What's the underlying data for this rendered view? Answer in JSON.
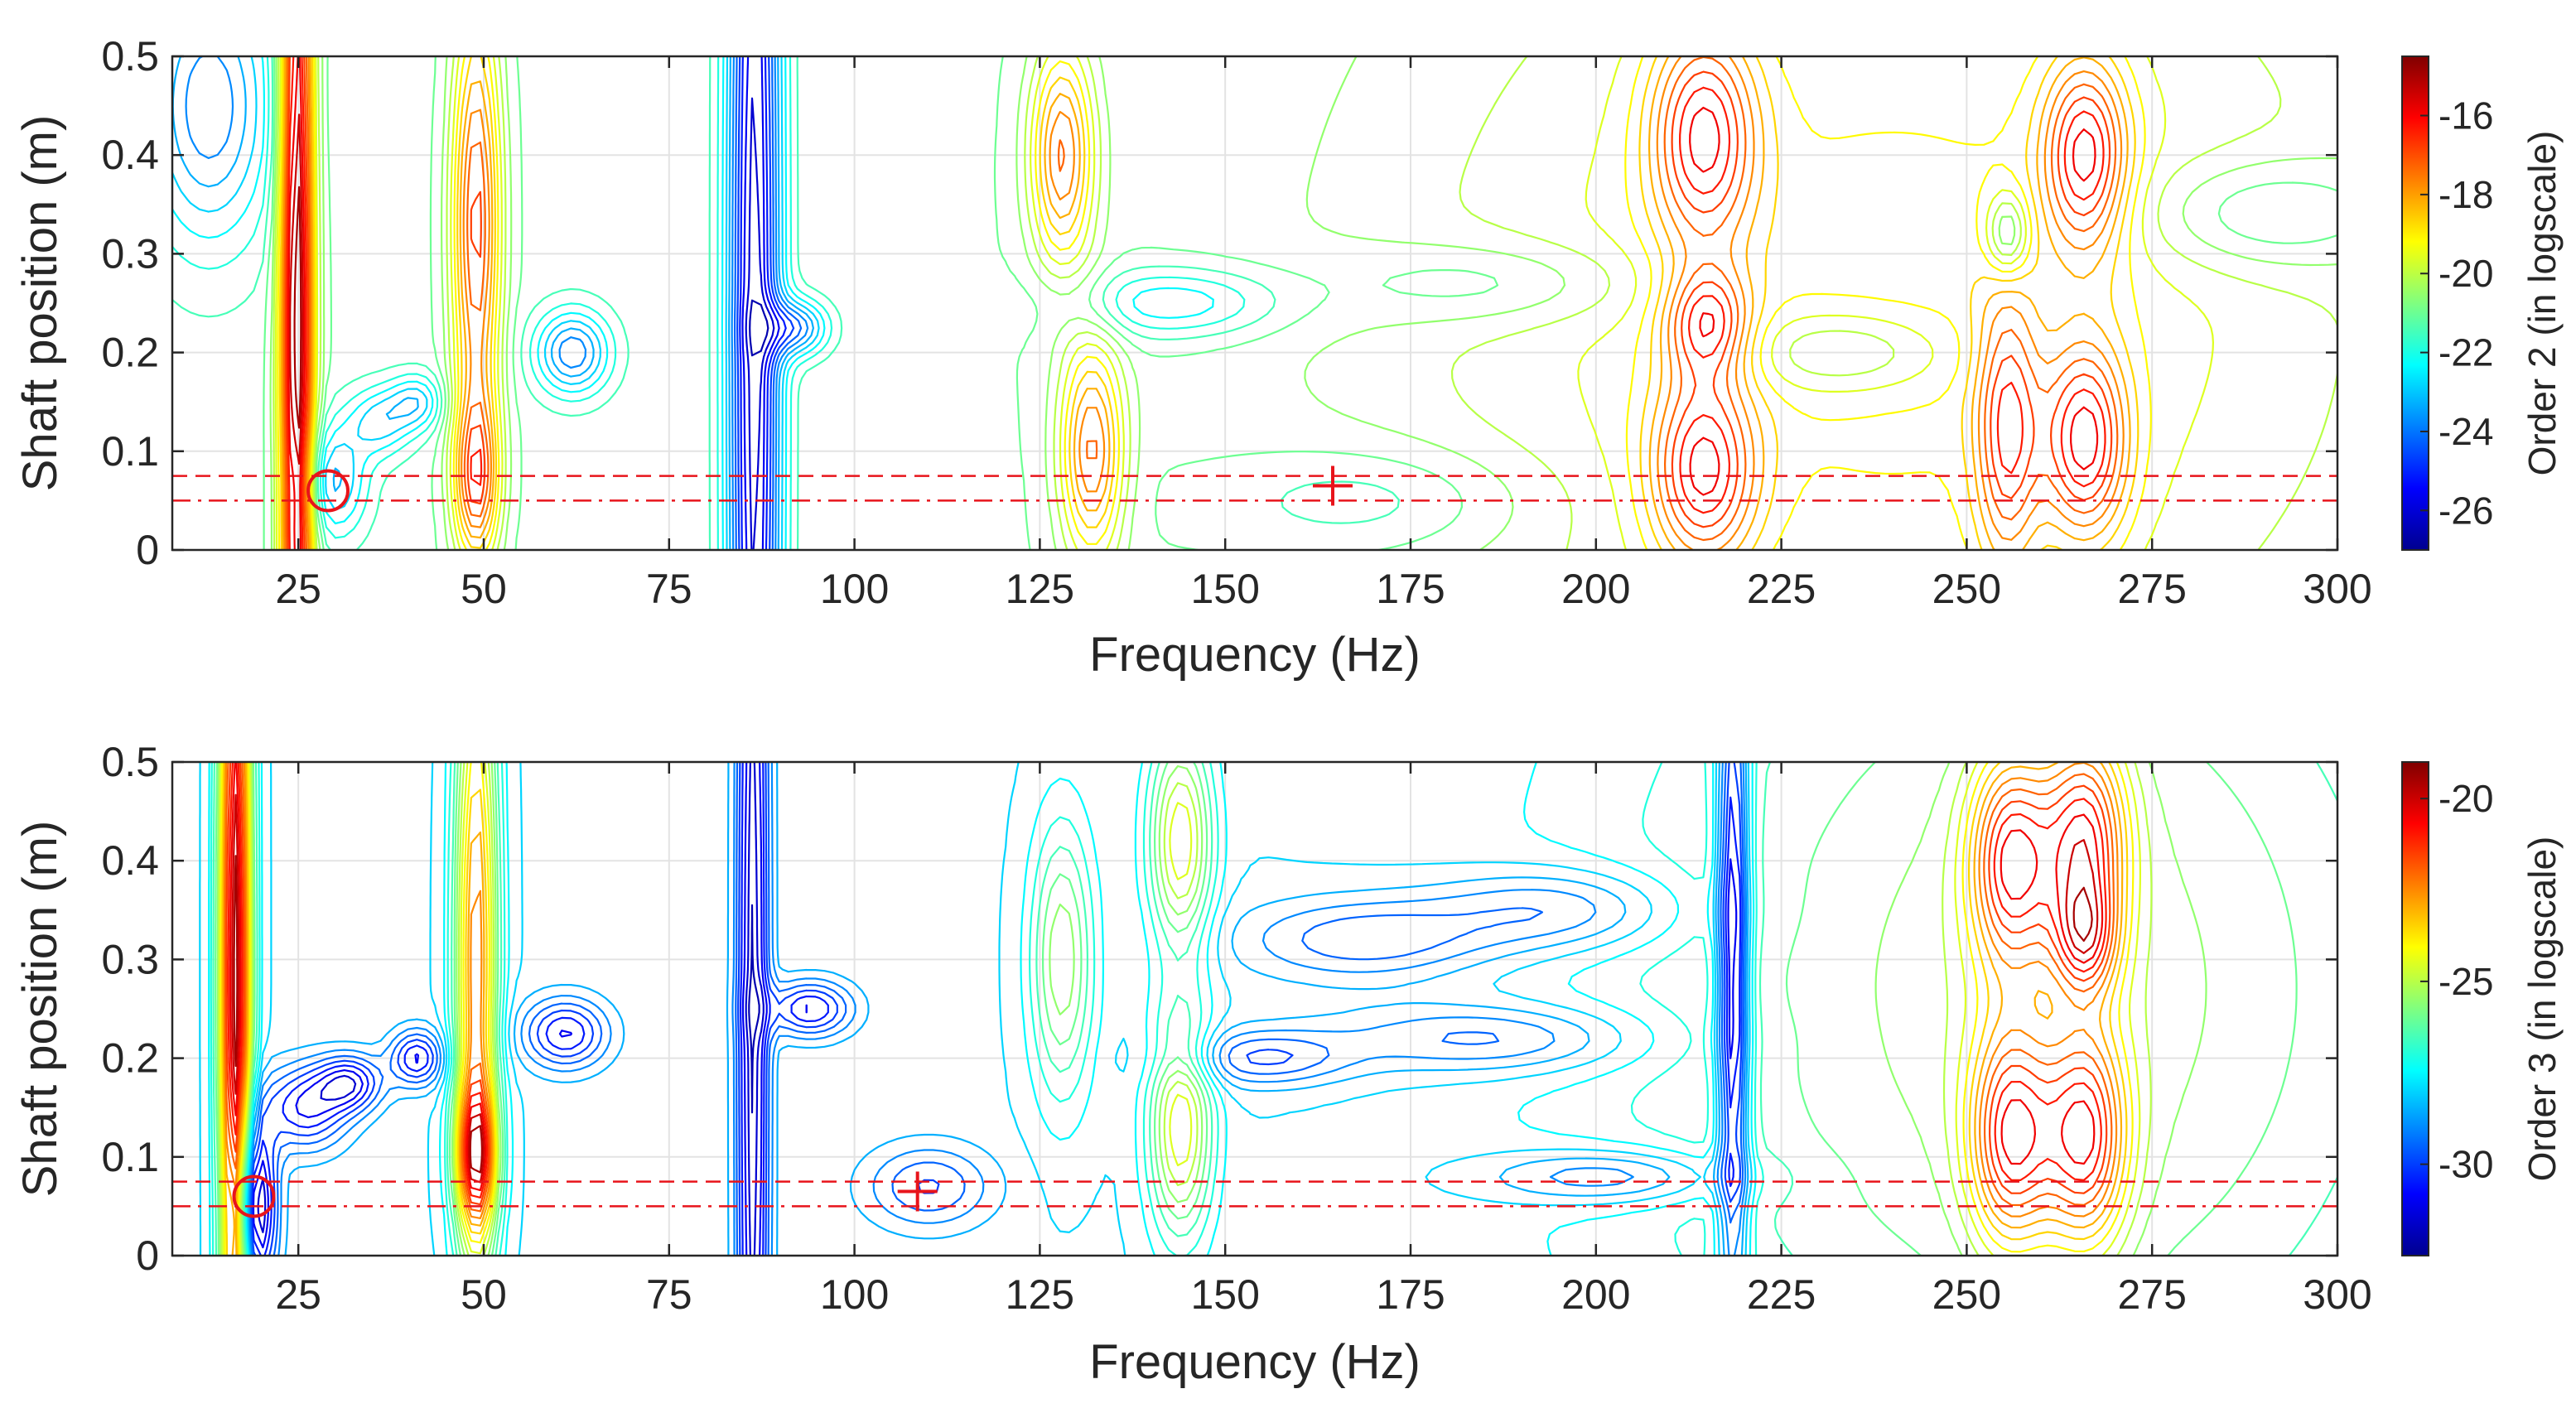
{
  "chart_data": [
    {
      "type": "contour",
      "xlabel": "Frequency (Hz)",
      "ylabel": "Shaft position (m)",
      "xlim": [
        8,
        300
      ],
      "ylim": [
        0,
        0.5
      ],
      "xticks": [
        25,
        50,
        75,
        100,
        125,
        150,
        175,
        200,
        225,
        250,
        275,
        300
      ],
      "yticks": [
        0,
        0.1,
        0.2,
        0.3,
        0.4,
        0.5
      ],
      "grid": true,
      "colorbar": {
        "label": "Order 2 (in logscale)",
        "range": [
          -27,
          -14.5
        ],
        "ticks": [
          -26,
          -24,
          -22,
          -20,
          -18,
          -16
        ],
        "colormap": "jet"
      },
      "reference_lines": [
        {
          "style": "dashed",
          "y": 0.075,
          "color": "#e8141b"
        },
        {
          "style": "dash-dot",
          "y": 0.05,
          "color": "#e8141b"
        }
      ],
      "markers": [
        {
          "symbol": "circle",
          "x": 29,
          "y": 0.06,
          "color": "#e8141b"
        },
        {
          "symbol": "plus",
          "x": 164.5,
          "y": 0.065,
          "color": "#e8141b"
        }
      ],
      "features": [
        {
          "x": 24.8,
          "y": 0.25,
          "sx": 1.6,
          "sy": 0.45,
          "amp": 9
        },
        {
          "x": 49,
          "y": 0.33,
          "sx": 2.3,
          "sy": 0.16,
          "amp": 6
        },
        {
          "x": 49,
          "y": 0.07,
          "sx": 2.2,
          "sy": 0.06,
          "amp": 5
        },
        {
          "x": 86.5,
          "y": 0.22,
          "sx": 2.5,
          "sy": 0.7,
          "amp": -7
        },
        {
          "x": 92,
          "y": 0.225,
          "sx": 3,
          "sy": 0.02,
          "amp": -4
        },
        {
          "x": 62,
          "y": 0.2,
          "sx": 3.5,
          "sy": 0.03,
          "amp": -4
        },
        {
          "x": 13,
          "y": 0.45,
          "sx": 6,
          "sy": 0.1,
          "amp": -4
        },
        {
          "x": 30,
          "y": 0.07,
          "sx": 3,
          "sy": 0.04,
          "amp": -3
        },
        {
          "x": 36,
          "y": 0.13,
          "sx": 3,
          "sy": 0.025,
          "amp": -2.5
        },
        {
          "x": 41,
          "y": 0.15,
          "sx": 2.5,
          "sy": 0.02,
          "amp": -2.5
        },
        {
          "x": 128,
          "y": 0.4,
          "sx": 3,
          "sy": 0.08,
          "amp": 5
        },
        {
          "x": 132,
          "y": 0.1,
          "sx": 3,
          "sy": 0.08,
          "amp": 5
        },
        {
          "x": 143,
          "y": 0.25,
          "sx": 10,
          "sy": 0.025,
          "amp": -2.5
        },
        {
          "x": 186,
          "y": 0.27,
          "sx": 15,
          "sy": 0.03,
          "amp": -1.5
        },
        {
          "x": 214.5,
          "y": 0.42,
          "sx": 5,
          "sy": 0.08,
          "amp": 5
        },
        {
          "x": 214.5,
          "y": 0.08,
          "sx": 5,
          "sy": 0.07,
          "amp": 5
        },
        {
          "x": 215,
          "y": 0.23,
          "sx": 4,
          "sy": 0.04,
          "amp": 4
        },
        {
          "x": 233,
          "y": 0.2,
          "sx": 10,
          "sy": 0.03,
          "amp": -2
        },
        {
          "x": 255.5,
          "y": 0.12,
          "sx": 3,
          "sy": 0.1,
          "amp": 4
        },
        {
          "x": 266,
          "y": 0.4,
          "sx": 4,
          "sy": 0.07,
          "amp": 5
        },
        {
          "x": 266,
          "y": 0.11,
          "sx": 4,
          "sy": 0.07,
          "amp": 5
        },
        {
          "x": 255.5,
          "y": 0.32,
          "sx": 2,
          "sy": 0.03,
          "amp": -3
        },
        {
          "x": 290,
          "y": 0.34,
          "sx": 12,
          "sy": 0.04,
          "amp": -2
        },
        {
          "x": 170,
          "y": 0.05,
          "sx": 15,
          "sy": 0.04,
          "amp": -1.5
        },
        {
          "x": 240,
          "y": 0.25,
          "sx": 50,
          "sy": 0.35,
          "amp": 3
        }
      ]
    },
    {
      "type": "contour",
      "xlabel": "Frequency (Hz)",
      "ylabel": "Shaft position (m)",
      "xlim": [
        8,
        300
      ],
      "ylim": [
        0,
        0.5
      ],
      "xticks": [
        25,
        50,
        75,
        100,
        125,
        150,
        175,
        200,
        225,
        250,
        275,
        300
      ],
      "yticks": [
        0,
        0.1,
        0.2,
        0.3,
        0.4,
        0.5
      ],
      "grid": true,
      "colorbar": {
        "label": "Order 3 (in logscale)",
        "range": [
          -32.5,
          -19
        ],
        "ticks": [
          -30,
          -25,
          -20
        ],
        "colormap": "jet"
      },
      "reference_lines": [
        {
          "style": "dashed",
          "y": 0.075,
          "color": "#e8141b"
        },
        {
          "style": "dash-dot",
          "y": 0.05,
          "color": "#e8141b"
        }
      ],
      "markers": [
        {
          "symbol": "circle",
          "x": 19,
          "y": 0.06,
          "color": "#e8141b"
        },
        {
          "symbol": "plus",
          "x": 108.5,
          "y": 0.065,
          "color": "#e8141b"
        }
      ],
      "features": [
        {
          "x": 16.5,
          "y": 0.28,
          "sx": 1.5,
          "sy": 0.4,
          "amp": 9
        },
        {
          "x": 49,
          "y": 0.3,
          "sx": 2,
          "sy": 0.25,
          "amp": 6
        },
        {
          "x": 49,
          "y": 0.1,
          "sx": 2,
          "sy": 0.05,
          "amp": 5
        },
        {
          "x": 86.3,
          "y": 0.25,
          "sx": 1.5,
          "sy": 0.6,
          "amp": -4
        },
        {
          "x": 94,
          "y": 0.25,
          "sx": 4,
          "sy": 0.02,
          "amp": -3
        },
        {
          "x": 61,
          "y": 0.225,
          "sx": 4,
          "sy": 0.025,
          "amp": -3
        },
        {
          "x": 19,
          "y": 0.05,
          "sx": 2,
          "sy": 0.06,
          "amp": -5
        },
        {
          "x": 26,
          "y": 0.15,
          "sx": 4,
          "sy": 0.03,
          "amp": -3
        },
        {
          "x": 32,
          "y": 0.175,
          "sx": 3,
          "sy": 0.02,
          "amp": -3
        },
        {
          "x": 41,
          "y": 0.2,
          "sx": 2.5,
          "sy": 0.02,
          "amp": -3
        },
        {
          "x": 144,
          "y": 0.42,
          "sx": 3,
          "sy": 0.08,
          "amp": 4
        },
        {
          "x": 144,
          "y": 0.13,
          "sx": 3,
          "sy": 0.08,
          "amp": 4
        },
        {
          "x": 128,
          "y": 0.3,
          "sx": 3,
          "sy": 0.1,
          "amp": 3
        },
        {
          "x": 169,
          "y": 0.32,
          "sx": 12,
          "sy": 0.03,
          "amp": -2
        },
        {
          "x": 195,
          "y": 0.35,
          "sx": 12,
          "sy": 0.03,
          "amp": -2
        },
        {
          "x": 186,
          "y": 0.22,
          "sx": 15,
          "sy": 0.025,
          "amp": -2
        },
        {
          "x": 155,
          "y": 0.2,
          "sx": 8,
          "sy": 0.02,
          "amp": -2
        },
        {
          "x": 218.5,
          "y": 0.3,
          "sx": 1.5,
          "sy": 0.25,
          "amp": -5
        },
        {
          "x": 256,
          "y": 0.4,
          "sx": 4,
          "sy": 0.08,
          "amp": 5
        },
        {
          "x": 266,
          "y": 0.42,
          "sx": 4,
          "sy": 0.08,
          "amp": 5
        },
        {
          "x": 256,
          "y": 0.12,
          "sx": 4,
          "sy": 0.08,
          "amp": 5
        },
        {
          "x": 266,
          "y": 0.12,
          "sx": 4,
          "sy": 0.08,
          "amp": 5
        },
        {
          "x": 266,
          "y": 0.32,
          "sx": 3,
          "sy": 0.04,
          "amp": 3
        },
        {
          "x": 202,
          "y": 0.08,
          "sx": 12,
          "sy": 0.02,
          "amp": -2
        },
        {
          "x": 260,
          "y": 0.27,
          "sx": 40,
          "sy": 0.35,
          "amp": 3
        },
        {
          "x": 110,
          "y": 0.07,
          "sx": 6,
          "sy": 0.03,
          "amp": -2
        }
      ]
    }
  ]
}
